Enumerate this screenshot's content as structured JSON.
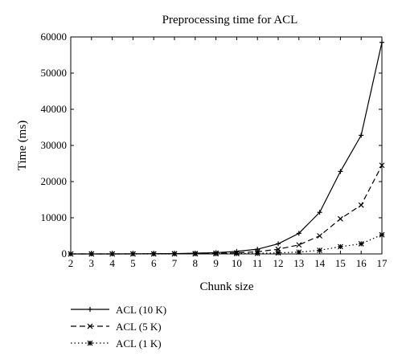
{
  "chart_data": {
    "type": "line",
    "title": "Preprocessing time for ACL",
    "xlabel": "Chunk size",
    "ylabel": "Time (ms)",
    "x": [
      2,
      3,
      4,
      5,
      6,
      7,
      8,
      9,
      10,
      11,
      12,
      13,
      14,
      15,
      16,
      17
    ],
    "xlim": [
      2,
      17
    ],
    "ylim": [
      0,
      60000
    ],
    "yticks": [
      0,
      10000,
      20000,
      30000,
      40000,
      50000,
      60000
    ],
    "grid": false,
    "legend_position": "bottom-left",
    "series": [
      {
        "name": "ACL (10 K)",
        "style": "solid",
        "marker": "plus",
        "values": [
          0,
          0,
          0,
          20,
          50,
          100,
          200,
          350,
          700,
          1300,
          2800,
          5700,
          11500,
          22800,
          32800,
          58500
        ]
      },
      {
        "name": "ACL (5 K)",
        "style": "dashed",
        "marker": "x",
        "values": [
          0,
          0,
          0,
          10,
          20,
          50,
          100,
          200,
          300,
          600,
          1300,
          2500,
          5000,
          9700,
          13500,
          24500
        ]
      },
      {
        "name": "ACL (1 K)",
        "style": "dotted",
        "marker": "asterisk",
        "values": [
          0,
          0,
          0,
          0,
          0,
          10,
          20,
          50,
          100,
          150,
          300,
          500,
          1000,
          2000,
          2800,
          5300
        ]
      }
    ]
  }
}
